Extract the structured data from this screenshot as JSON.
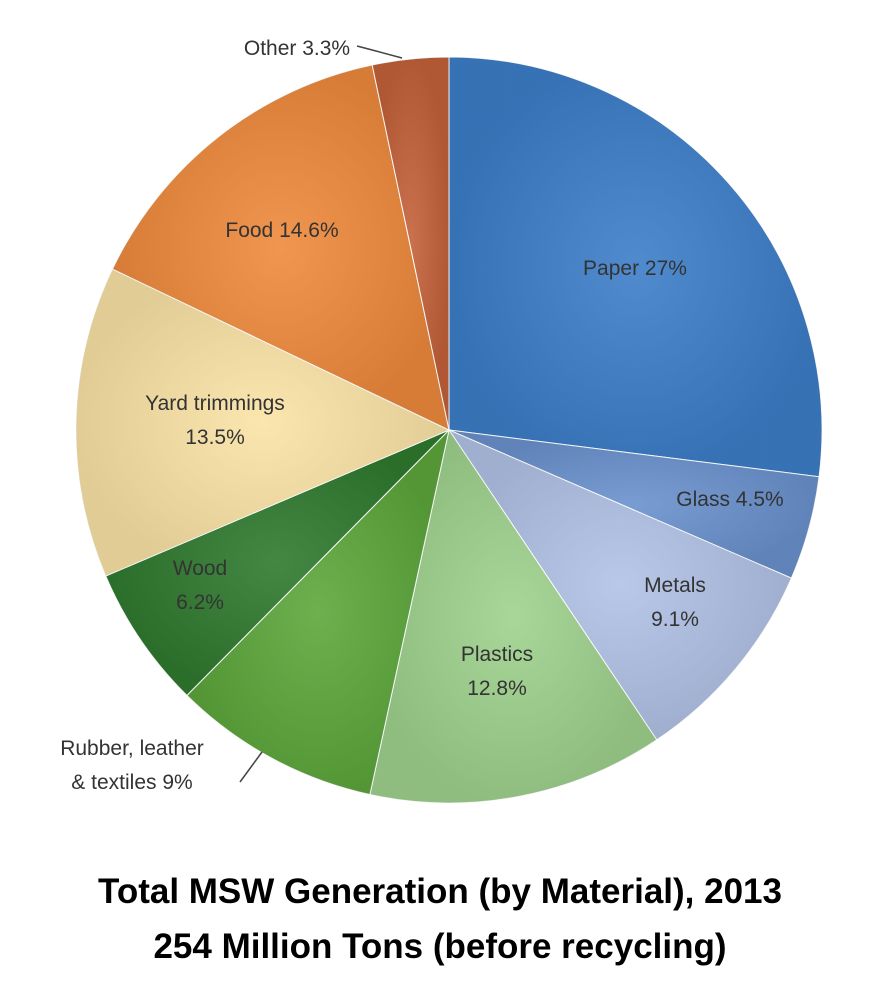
{
  "chart_data": {
    "type": "pie",
    "title": "Total MSW Generation (by Material), 2013",
    "subtitle": "254 Million Tons (before recycling)",
    "start_angle_deg": 0,
    "direction": "clockwise",
    "slices": [
      {
        "key": "paper",
        "value": 27,
        "label_lines": [
          "Paper 27%"
        ],
        "color": "#3d7ec9",
        "label_position": "inside"
      },
      {
        "key": "glass",
        "value": 4.5,
        "label_lines": [
          "Glass 4.5%"
        ],
        "color": "#6a92cd",
        "label_position": "inside"
      },
      {
        "key": "metals",
        "value": 9.1,
        "label_lines": [
          "Metals",
          "9.1%"
        ],
        "color": "#b1c2e6",
        "label_position": "inside"
      },
      {
        "key": "plastics",
        "value": 12.8,
        "label_lines": [
          "Plastics",
          "12.8%"
        ],
        "color": "#9fd28e",
        "label_position": "inside"
      },
      {
        "key": "rubber",
        "value": 9,
        "label_lines": [
          "Rubber, leather",
          "& textiles 9%"
        ],
        "color": "#5da73b",
        "label_position": "outside-bottom-left"
      },
      {
        "key": "wood",
        "value": 6.2,
        "label_lines": [
          "Wood",
          "6.2%"
        ],
        "color": "#2f7a2f",
        "label_position": "inside"
      },
      {
        "key": "yard",
        "value": 13.5,
        "label_lines": [
          "Yard trimmings",
          "13.5%"
        ],
        "color": "#fbe3a6",
        "label_position": "inside"
      },
      {
        "key": "food",
        "value": 14.6,
        "label_lines": [
          "Food 14.6%"
        ],
        "color": "#ee8a3c",
        "label_position": "inside"
      },
      {
        "key": "other",
        "value": 3.3,
        "label_lines": [
          "Other 3.3%"
        ],
        "color": "#c4613a",
        "label_position": "outside-top"
      }
    ]
  }
}
